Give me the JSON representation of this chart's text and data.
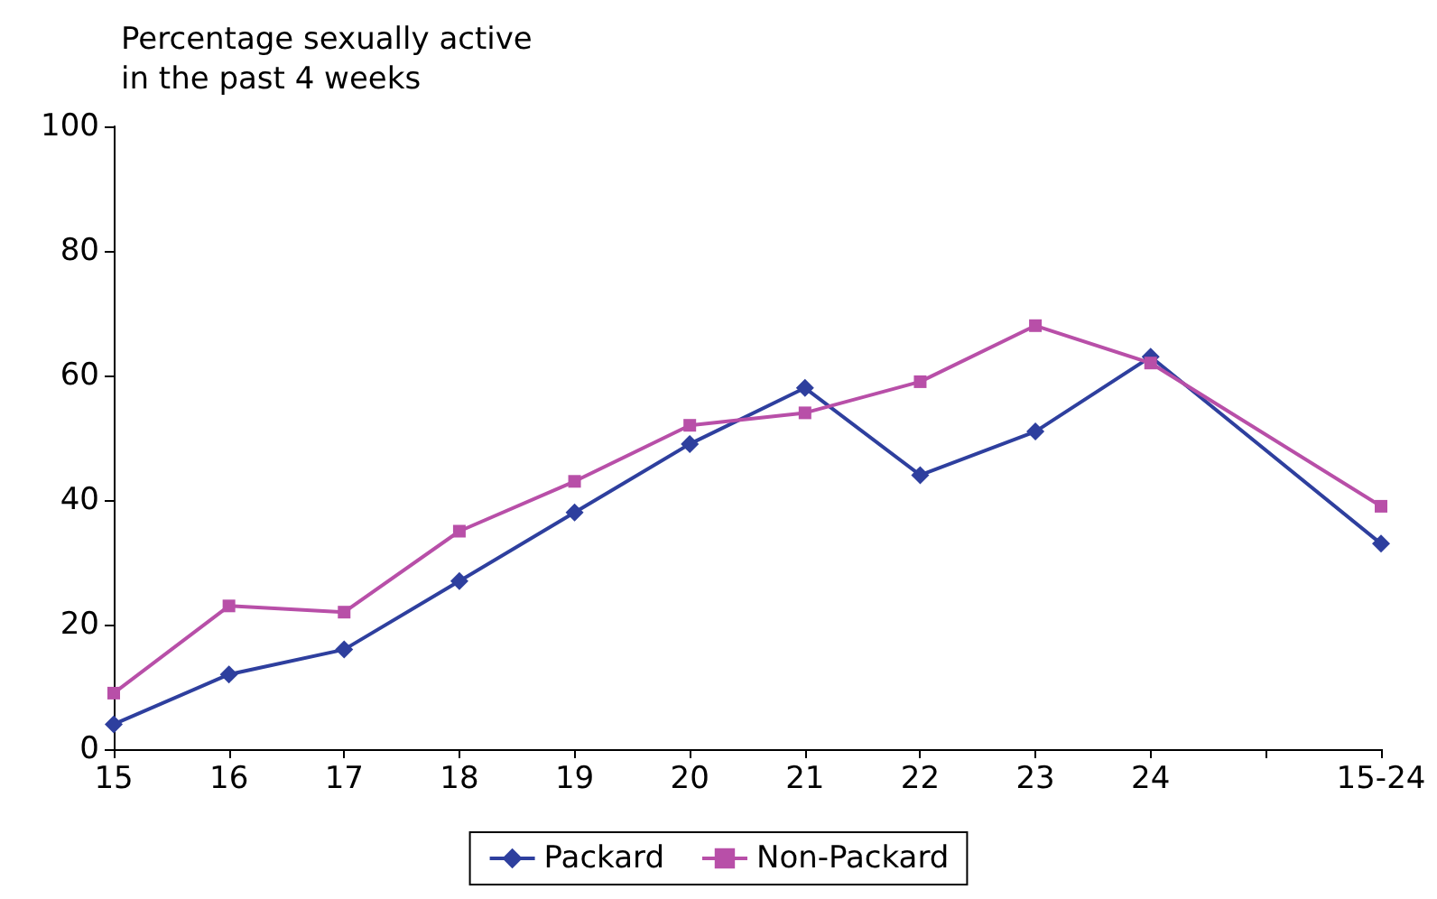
{
  "chart_data": {
    "type": "line",
    "ylabel": "Percentage sexually active\nin the past 4 weeks",
    "categories": [
      "15",
      "16",
      "17",
      "18",
      "19",
      "20",
      "21",
      "22",
      "23",
      "24",
      null,
      "15-24"
    ],
    "series": [
      {
        "name": "Packard",
        "color": "#2e3f9e",
        "marker": "diamond",
        "values": [
          4,
          12,
          16,
          27,
          38,
          49,
          58,
          44,
          51,
          63,
          null,
          33
        ]
      },
      {
        "name": "Non-Packard",
        "color": "#b84fa8",
        "marker": "square",
        "values": [
          9,
          23,
          22,
          35,
          43,
          52,
          54,
          59,
          68,
          62,
          null,
          39
        ]
      }
    ],
    "ylim": [
      0,
      100
    ],
    "yticks": [
      0,
      20,
      40,
      60,
      80,
      100
    ],
    "grid": false,
    "legend": "bottom",
    "line_style": "solid"
  }
}
